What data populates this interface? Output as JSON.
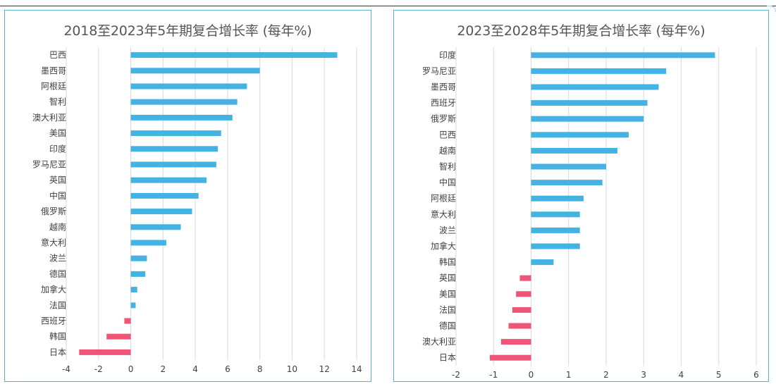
{
  "colors": {
    "positive": "#44b2e2",
    "negative": "#ef5577",
    "grid": "#d9d9d9",
    "border": "#5fb3c3"
  },
  "chart_data": [
    {
      "type": "bar",
      "orientation": "horizontal",
      "title": "2018至2023年5年期复合增长率 (每年%)",
      "categories": [
        "巴西",
        "墨西哥",
        "阿根廷",
        "智利",
        "澳大利亚",
        "美国",
        "印度",
        "罗马尼亚",
        "英国",
        "中国",
        "俄罗斯",
        "越南",
        "意大利",
        "波兰",
        "德国",
        "加拿大",
        "法国",
        "西班牙",
        "韩国",
        "日本"
      ],
      "values": [
        12.8,
        8.0,
        7.2,
        6.6,
        6.3,
        5.6,
        5.4,
        5.3,
        4.7,
        4.2,
        3.8,
        3.1,
        2.2,
        1.0,
        0.9,
        0.4,
        0.3,
        -0.4,
        -1.5,
        -3.2
      ],
      "xlim": [
        -4,
        14
      ],
      "xticks": [
        -4,
        -2,
        0,
        2,
        4,
        6,
        8,
        10,
        12,
        14
      ],
      "grid": true
    },
    {
      "type": "bar",
      "orientation": "horizontal",
      "title": "2023至2028年5年期复合增长率 (每年%)",
      "categories": [
        "印度",
        "罗马尼亚",
        "墨西哥",
        "西班牙",
        "俄罗斯",
        "巴西",
        "越南",
        "智利",
        "中国",
        "阿根廷",
        "意大利",
        "波兰",
        "加拿大",
        "韩国",
        "英国",
        "美国",
        "法国",
        "德国",
        "澳大利亚",
        "日本"
      ],
      "values": [
        4.9,
        3.6,
        3.4,
        3.1,
        3.0,
        2.6,
        2.3,
        2.0,
        1.9,
        1.4,
        1.3,
        1.3,
        1.3,
        0.6,
        -0.3,
        -0.4,
        -0.5,
        -0.6,
        -0.8,
        -1.1
      ],
      "xlim": [
        -2,
        6
      ],
      "xticks": [
        -2,
        -1,
        0,
        1,
        2,
        3,
        4,
        5,
        6
      ],
      "grid": true
    }
  ]
}
